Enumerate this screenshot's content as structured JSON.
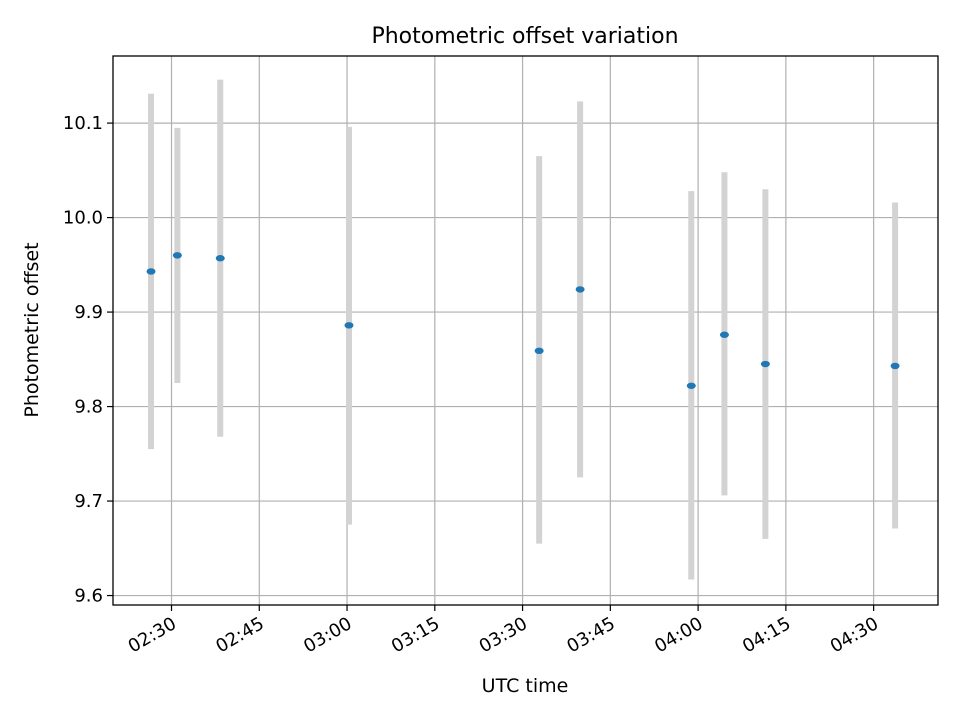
{
  "chart_data": {
    "type": "scatter",
    "title": "Photometric offset variation",
    "xlabel": "UTC time",
    "ylabel": "Photometric offset",
    "xlim": [
      "02:20",
      "04:41"
    ],
    "ylim": [
      9.59,
      10.171
    ],
    "x_ticks": [
      "02:30",
      "02:45",
      "03:00",
      "03:15",
      "03:30",
      "03:45",
      "04:00",
      "04:15",
      "04:30"
    ],
    "y_ticks": [
      9.6,
      9.7,
      9.8,
      9.9,
      10.0,
      10.1
    ],
    "y_tick_labels": [
      "9.6",
      "9.7",
      "9.8",
      "9.9",
      "10.0",
      "10.1"
    ],
    "grid": true,
    "marker_color": "#1f77b4",
    "errorbar_color": "#d3d3d3",
    "points": [
      {
        "time": "02:26:30",
        "y": 9.943,
        "ymin": 9.755,
        "ymax": 10.131
      },
      {
        "time": "02:31:00",
        "y": 9.96,
        "ymin": 9.825,
        "ymax": 10.095
      },
      {
        "time": "02:38:20",
        "y": 9.957,
        "ymin": 9.768,
        "ymax": 10.146
      },
      {
        "time": "03:00:20",
        "y": 9.886,
        "ymin": 9.675,
        "ymax": 10.096
      },
      {
        "time": "03:32:50",
        "y": 9.859,
        "ymin": 9.655,
        "ymax": 10.065
      },
      {
        "time": "03:39:50",
        "y": 9.924,
        "ymin": 9.725,
        "ymax": 10.123
      },
      {
        "time": "03:58:50",
        "y": 9.822,
        "ymin": 9.617,
        "ymax": 10.028
      },
      {
        "time": "04:04:30",
        "y": 9.876,
        "ymin": 9.706,
        "ymax": 10.048
      },
      {
        "time": "04:11:30",
        "y": 9.845,
        "ymin": 9.66,
        "ymax": 10.03
      },
      {
        "time": "04:33:40",
        "y": 9.843,
        "ymin": 9.671,
        "ymax": 10.016
      }
    ]
  }
}
